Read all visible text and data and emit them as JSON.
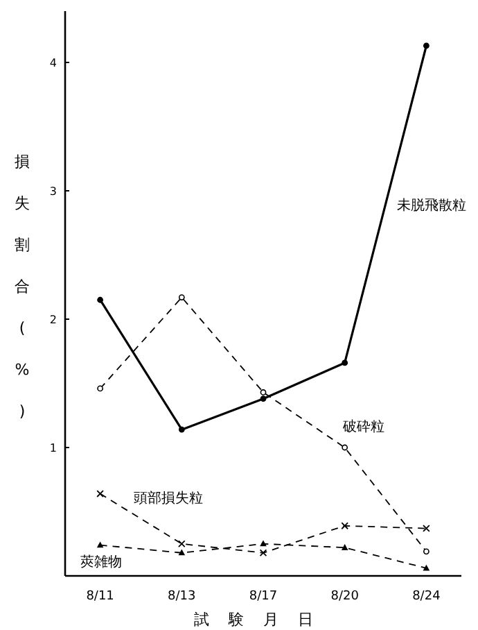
{
  "chart_data": {
    "type": "line",
    "ylabel": "損失割合(%)",
    "xlabel": "試験月日",
    "categories": [
      "8/11",
      "8/13",
      "8/17",
      "8/20",
      "8/24"
    ],
    "ylim": [
      0,
      4.4
    ],
    "yticks": [
      1,
      2,
      3,
      4
    ],
    "series": [
      {
        "name": "未脱飛散粒",
        "color": "#000000",
        "line_style": "solid",
        "marker": "circle",
        "values": [
          2.15,
          1.14,
          1.38,
          1.66,
          4.13
        ]
      },
      {
        "name": "破砕粒",
        "color": "#000000",
        "line_style": "dashed",
        "marker": "circle",
        "values": [
          1.46,
          2.17,
          1.43,
          1.0,
          0.19
        ]
      },
      {
        "name": "頭部損失粒",
        "color": "#000000",
        "line_style": "dashed",
        "marker": "cross",
        "values": [
          0.64,
          0.25,
          0.18,
          0.39,
          0.37
        ]
      },
      {
        "name": "莢雑物",
        "color": "#000000",
        "line_style": "dashed",
        "marker": "triangle",
        "values": [
          0.24,
          0.18,
          0.25,
          0.22,
          0.06
        ]
      }
    ]
  }
}
